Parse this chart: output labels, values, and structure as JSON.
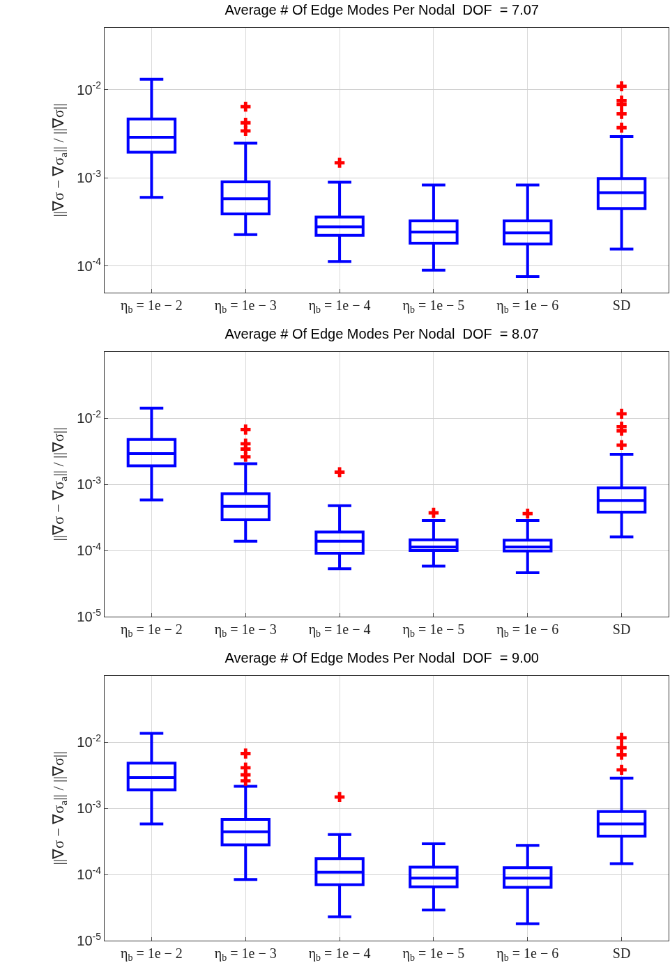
{
  "chart_data": [
    {
      "type": "box",
      "title": "Average # Of Edge Modes Per Nodal  DOF  = 7.07",
      "ylabel": "||∇σ − ∇σ$_{a}$|| / ||∇σ||",
      "categories": [
        "η$_{b}$ = 1e − 2",
        "η$_{b}$ = 1e − 3",
        "η$_{b}$ = 1e − 4",
        "η$_{b}$ = 1e − 5",
        "η$_{b}$ = 1e − 6",
        "SD"
      ],
      "log": "y",
      "grid": true,
      "ylim": [
        5e-05,
        0.05
      ],
      "yticks": [
        {
          "value": 0.0001,
          "label": "10$^{-4}$"
        },
        {
          "value": 0.001,
          "label": "10$^{-3}$"
        },
        {
          "value": 0.01,
          "label": "10$^{-2}$"
        }
      ],
      "series": [
        {
          "color": "#0000ff",
          "boxes": [
            {
              "low": 0.0006,
              "q1": 0.00195,
              "median": 0.00288,
              "q3": 0.00464,
              "high": 0.0131
            },
            {
              "low": 0.000227,
              "q1": 0.00039,
              "median": 0.00058,
              "q3": 0.0009,
              "high": 0.00247
            },
            {
              "low": 0.000113,
              "q1": 0.000223,
              "median": 0.000278,
              "q3": 0.00036,
              "high": 0.00089
            },
            {
              "low": 9e-05,
              "q1": 0.000182,
              "median": 0.000243,
              "q3": 0.000325,
              "high": 0.00083
            },
            {
              "low": 7.6e-05,
              "q1": 0.000178,
              "median": 0.000238,
              "q3": 0.000325,
              "high": 0.00083
            },
            {
              "low": 0.000156,
              "q1": 0.00045,
              "median": 0.00068,
              "q3": 0.00098,
              "high": 0.00293
            }
          ]
        },
        {
          "type": "scatter",
          "color": "#ff0000",
          "marker": "cross",
          "x": [
            "η$_{b}$ = 1e − 3",
            "η$_{b}$ = 1e − 3",
            "η$_{b}$ = 1e − 3",
            "η$_{b}$ = 1e − 4",
            "SD",
            "SD",
            "SD",
            "SD",
            "SD"
          ],
          "values": [
            0.0064,
            0.0042,
            0.0034,
            0.00148,
            0.0109,
            0.0075,
            0.0068,
            0.0053,
            0.0037
          ]
        }
      ]
    },
    {
      "type": "box",
      "title": "Average # Of Edge Modes Per Nodal  DOF  = 8.07",
      "ylabel": "||∇σ − ∇σ$_{a}$|| / ||∇σ||",
      "categories": [
        "η$_{b}$ = 1e − 2",
        "η$_{b}$ = 1e − 3",
        "η$_{b}$ = 1e − 4",
        "η$_{b}$ = 1e − 5",
        "η$_{b}$ = 1e − 6",
        "SD"
      ],
      "log": "y",
      "grid": true,
      "ylim": [
        1e-05,
        0.1
      ],
      "yticks": [
        {
          "value": 1e-05,
          "label": "10$^{-5}$"
        },
        {
          "value": 0.0001,
          "label": "10$^{-4}$"
        },
        {
          "value": 0.001,
          "label": "10$^{-3}$"
        },
        {
          "value": 0.01,
          "label": "10$^{-2}$"
        }
      ],
      "series": [
        {
          "color": "#0000ff",
          "boxes": [
            {
              "low": 0.00058,
              "q1": 0.0019,
              "median": 0.0029,
              "q3": 0.00476,
              "high": 0.0141
            },
            {
              "low": 0.000138,
              "q1": 0.00029,
              "median": 0.000464,
              "q3": 0.00072,
              "high": 0.00205
            },
            {
              "low": 5.3e-05,
              "q1": 9.1e-05,
              "median": 0.000138,
              "q3": 0.00019,
              "high": 0.000475
            },
            {
              "low": 5.8e-05,
              "q1": 0.0001,
              "median": 0.000113,
              "q3": 0.000145,
              "high": 0.000283
            },
            {
              "low": 4.6e-05,
              "q1": 9.8e-05,
              "median": 0.000113,
              "q3": 0.000143,
              "high": 0.000283
            },
            {
              "low": 0.00016,
              "q1": 0.00038,
              "median": 0.00057,
              "q3": 0.00088,
              "high": 0.00283
            }
          ]
        },
        {
          "type": "scatter",
          "color": "#ff0000",
          "marker": "cross",
          "x": [
            "η$_{b}$ = 1e − 3",
            "η$_{b}$ = 1e − 3",
            "η$_{b}$ = 1e − 3",
            "η$_{b}$ = 1e − 3",
            "η$_{b}$ = 1e − 4",
            "η$_{b}$ = 1e − 5",
            "η$_{b}$ = 1e − 6",
            "SD",
            "SD",
            "SD",
            "SD"
          ],
          "values": [
            0.0067,
            0.0041,
            0.0034,
            0.0026,
            0.00152,
            0.00037,
            0.00036,
            0.0116,
            0.0074,
            0.0064,
            0.0039
          ]
        }
      ]
    },
    {
      "type": "box",
      "title": "Average # Of Edge Modes Per Nodal  DOF  = 9.00",
      "ylabel": "||∇σ − ∇σ$_{a}$|| / ||∇σ||",
      "categories": [
        "η$_{b}$ = 1e − 2",
        "η$_{b}$ = 1e − 3",
        "η$_{b}$ = 1e − 4",
        "η$_{b}$ = 1e − 5",
        "η$_{b}$ = 1e − 6",
        "SD"
      ],
      "log": "y",
      "grid": true,
      "ylim": [
        1e-05,
        0.1
      ],
      "yticks": [
        {
          "value": 1e-05,
          "label": "10$^{-5}$"
        },
        {
          "value": 0.0001,
          "label": "10$^{-4}$"
        },
        {
          "value": 0.001,
          "label": "10$^{-3}$"
        },
        {
          "value": 0.01,
          "label": "10$^{-2}$"
        }
      ],
      "series": [
        {
          "color": "#0000ff",
          "boxes": [
            {
              "low": 0.00058,
              "q1": 0.0019,
              "median": 0.0029,
              "q3": 0.0048,
              "high": 0.0135
            },
            {
              "low": 8.4e-05,
              "q1": 0.00028,
              "median": 0.00044,
              "q3": 0.00068,
              "high": 0.00215
            },
            {
              "low": 2.3e-05,
              "q1": 7e-05,
              "median": 0.000108,
              "q3": 0.000174,
              "high": 0.0004
            },
            {
              "low": 2.9e-05,
              "q1": 6.5e-05,
              "median": 8.8e-05,
              "q3": 0.000129,
              "high": 0.00029
            },
            {
              "low": 1.8e-05,
              "q1": 6.4e-05,
              "median": 8.8e-05,
              "q3": 0.000127,
              "high": 0.000275
            },
            {
              "low": 0.000146,
              "q1": 0.00038,
              "median": 0.00058,
              "q3": 0.00089,
              "high": 0.00285
            }
          ]
        },
        {
          "type": "scatter",
          "color": "#ff0000",
          "marker": "cross",
          "x": [
            "η$_{b}$ = 1e − 3",
            "η$_{b}$ = 1e − 3",
            "η$_{b}$ = 1e − 3",
            "η$_{b}$ = 1e − 3",
            "η$_{b}$ = 1e − 4",
            "SD",
            "SD",
            "SD",
            "SD"
          ],
          "values": [
            0.0067,
            0.0041,
            0.0032,
            0.0026,
            0.00148,
            0.0116,
            0.0082,
            0.0064,
            0.0038
          ]
        }
      ]
    }
  ]
}
